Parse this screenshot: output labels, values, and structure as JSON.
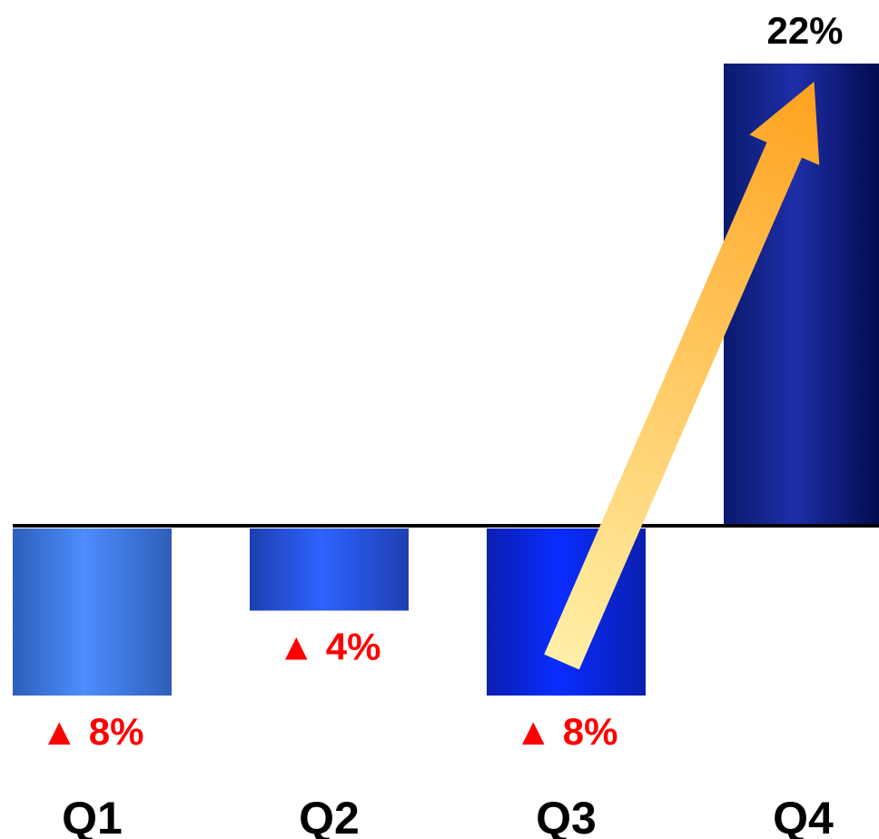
{
  "chart_data": {
    "type": "bar",
    "title": "",
    "xlabel": "",
    "ylabel": "",
    "categories": [
      "Q1",
      "Q2",
      "Q3",
      "Q4"
    ],
    "values": [
      -8,
      -4,
      -8,
      22
    ],
    "labels": [
      "▲ 8%",
      "▲ 4%",
      "▲ 8%",
      "22%"
    ],
    "ylim": [
      -8,
      22
    ],
    "grid": false,
    "legend": "none",
    "colors": {
      "bars": [
        [
          "#2e5fb8",
          "#4d8dff",
          "#2e5fb8"
        ],
        [
          "#1f3fb0",
          "#2d63ff",
          "#1f3fb0"
        ],
        [
          "#0a1fb0",
          "#0a2cff",
          "#0a1fb0"
        ],
        [
          "#0a1a6e",
          "#1e2ea8",
          "#000a4a"
        ]
      ],
      "label_negative": "#ff0000",
      "label_positive": "#000000",
      "axis": "#000000",
      "arrow_start": "#fff0a8",
      "arrow_end": "#ffa21e"
    },
    "annotation": {
      "type": "arrow",
      "from_category": "Q3",
      "to_category": "Q4"
    }
  }
}
